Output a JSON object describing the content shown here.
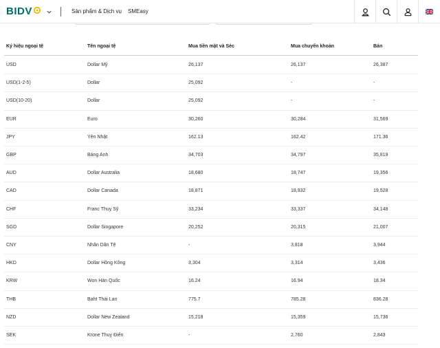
{
  "header": {
    "brand": "BIDV",
    "nav": [
      "Sản phẩm & Dịch vụ",
      "SMEasy"
    ],
    "buttons": [
      "branch-locator-icon",
      "search-icon",
      "user-icon",
      "uk-flag-icon"
    ],
    "colors": {
      "brand": "#006b68",
      "accent": "#f2b600",
      "button": "#0f5a52"
    }
  },
  "table": {
    "headers": [
      "Ký hiệu ngoại tệ",
      "Tên ngoại tệ",
      "Mua tiền mặt và Séc",
      "Mua chuyển khoản",
      "Bán"
    ],
    "rows": [
      [
        "USD",
        "Dollar Mỹ",
        "26,137",
        "26,137",
        "26,387"
      ],
      [
        "USD(1-2-5)",
        "Dollar",
        "25,092",
        "-",
        "-"
      ],
      [
        "USD(10-20)",
        "Dollar",
        "25,092",
        "-",
        "-"
      ],
      [
        "EUR",
        "Euro",
        "30,260",
        "30,284",
        "31,569"
      ],
      [
        "JPY",
        "Yên Nhật",
        "162.13",
        "162.42",
        "171.36"
      ],
      [
        "GBP",
        "Bảng Anh",
        "34,703",
        "34,797",
        "35,819"
      ],
      [
        "AUD",
        "Dollar Australia",
        "18,680",
        "18,747",
        "19,356"
      ],
      [
        "CAD",
        "Dollar Canada",
        "18,871",
        "18,932",
        "19,528"
      ],
      [
        "CHF",
        "Franc Thuỵ Sỹ",
        "33,234",
        "33,337",
        "34,148"
      ],
      [
        "SGD",
        "Dollar Singapore",
        "20,252",
        "20,315",
        "21,007"
      ],
      [
        "CNY",
        "Nhân Dân Tệ",
        "-",
        "3,818",
        "3,944"
      ],
      [
        "HKD",
        "Dollar Hồng Kông",
        "3,304",
        "3,314",
        "3,436"
      ],
      [
        "KRW",
        "Won Hàn Quốc",
        "16.24",
        "16.94",
        "18.34"
      ],
      [
        "THB",
        "Baht Thái Lan",
        "775.7",
        "785.28",
        "836.28"
      ],
      [
        "NZD",
        "Dollar New Zealand",
        "15,218",
        "15,359",
        "15,736"
      ],
      [
        "SEK",
        "Krone Thuỵ Điển",
        "-",
        "2,760",
        "2,843"
      ]
    ]
  }
}
